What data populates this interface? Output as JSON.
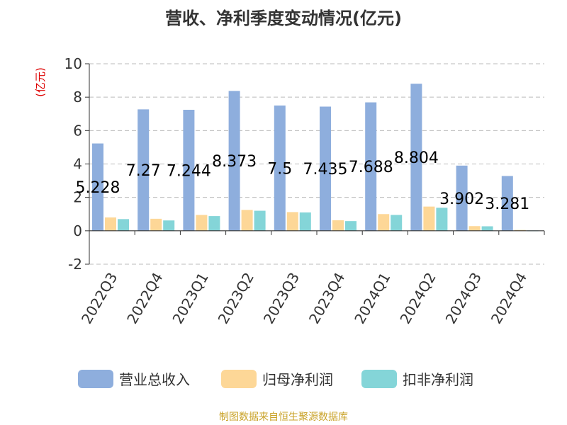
{
  "title": "营收、净利季度变动情况(亿元)",
  "source": "制图数据来自恒生聚源数据库",
  "chart_data": {
    "type": "bar",
    "ylabel": "(亿元)",
    "ylim": [
      -2,
      10
    ],
    "yticks": [
      -2,
      0,
      2,
      4,
      6,
      8,
      10
    ],
    "grid": true,
    "legend_position": "bottom",
    "categories": [
      "2022Q3",
      "2022Q4",
      "2023Q1",
      "2023Q2",
      "2023Q3",
      "2023Q4",
      "2024Q1",
      "2024Q2",
      "2024Q3",
      "2024Q4"
    ],
    "series": [
      {
        "name": "营业总收入",
        "color": "#8eaedd",
        "values": [
          5.228,
          7.27,
          7.244,
          8.373,
          7.5,
          7.435,
          7.688,
          8.804,
          3.902,
          3.281
        ],
        "labels": [
          "5.228",
          "7.27",
          "7.244",
          "8.373",
          "7.5",
          "7.435",
          "7.688",
          "8.804",
          "3.902",
          "3.281"
        ]
      },
      {
        "name": "归母净利润",
        "color": "#fdd797",
        "values": [
          0.8,
          0.72,
          0.95,
          1.25,
          1.12,
          0.63,
          1.0,
          1.45,
          0.28,
          0.05
        ]
      },
      {
        "name": "扣非净利润",
        "color": "#84d5d8",
        "values": [
          0.7,
          0.62,
          0.88,
          1.2,
          1.1,
          0.58,
          0.95,
          1.38,
          0.27,
          0.02
        ]
      }
    ]
  }
}
